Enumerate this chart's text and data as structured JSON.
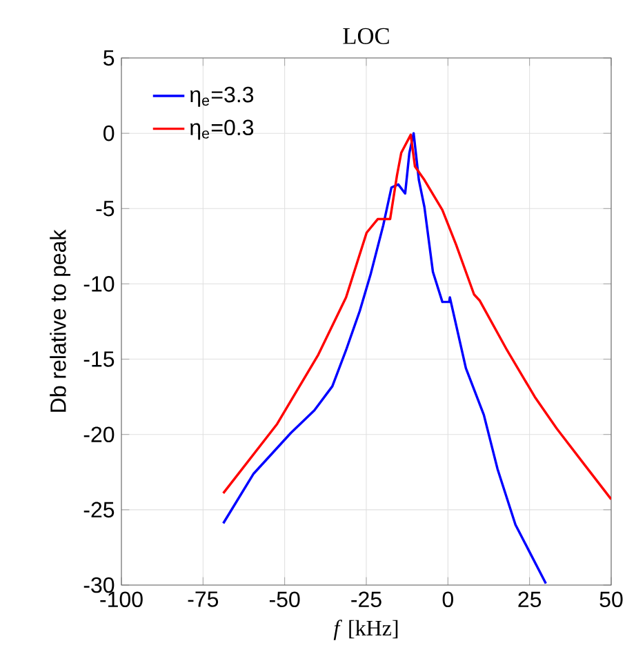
{
  "chart_data": {
    "type": "line",
    "title": "LOC",
    "xlabel": "*f* [kHz]",
    "ylabel": "Db relative to peak",
    "xlim": [
      -100,
      50
    ],
    "xticks": [
      -100,
      -75,
      -50,
      -25,
      0,
      25,
      50
    ],
    "ylim": [
      -30,
      5
    ],
    "yticks": [
      -30,
      -25,
      -20,
      -15,
      -10,
      -5,
      0,
      5
    ],
    "grid": true,
    "legend": "top left",
    "marker": "none",
    "line_style": "solid",
    "series": [
      {
        "name": "η$_{e}$=3.3",
        "color": "#0000ff",
        "x": [
          -68.8,
          -59.5,
          -48.1,
          -40.9,
          -35.4,
          -31.2,
          -27,
          -23.6,
          -19.8,
          -17.3,
          -15.2,
          -13.1,
          -11.8,
          -10.5,
          -8.9,
          -7.2,
          -4.6,
          -1.7,
          0.4,
          0.6,
          5.5,
          11,
          15.2,
          20.7,
          30
        ],
        "values": [
          -25.9,
          -22.6,
          -19.9,
          -18.4,
          -16.8,
          -14.4,
          -11.8,
          -9.3,
          -6.1,
          -3.6,
          -3.4,
          -4.0,
          -1.3,
          0,
          -3.1,
          -4.9,
          -9.2,
          -11.2,
          -11.2,
          -10.9,
          -15.6,
          -18.7,
          -22.3,
          -26,
          -29.9
        ]
      },
      {
        "name": "η$_{e}$=0.3",
        "color": "#ff0000",
        "x": [
          -68.8,
          -52.3,
          -39.7,
          -31.2,
          -24.9,
          -21.5,
          -17.7,
          -15.6,
          -14.3,
          -11.4,
          -10.1,
          -7.2,
          -1.7,
          2.5,
          8,
          9.7,
          18.1,
          26.6,
          33.3,
          41.8,
          50
        ],
        "values": [
          -23.9,
          -19.3,
          -14.7,
          -10.9,
          -6.6,
          -5.7,
          -5.7,
          -2.8,
          -1.3,
          -0.1,
          -2.2,
          -3.1,
          -5.1,
          -7.4,
          -10.7,
          -11.1,
          -14.4,
          -17.5,
          -19.6,
          -22.0,
          -24.3
        ]
      }
    ]
  }
}
